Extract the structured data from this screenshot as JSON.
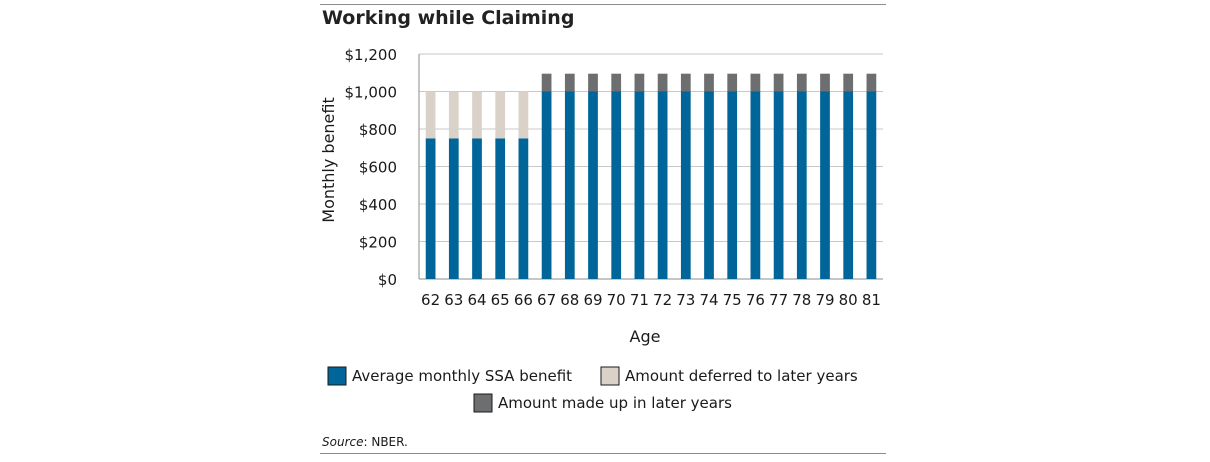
{
  "title": "Working while Claiming",
  "source": {
    "label": "Source",
    "text": ": NBER."
  },
  "chart_data": {
    "type": "bar",
    "stacked": true,
    "categories": [
      "62",
      "63",
      "64",
      "65",
      "66",
      "67",
      "68",
      "69",
      "70",
      "71",
      "72",
      "73",
      "74",
      "75",
      "76",
      "77",
      "78",
      "79",
      "80",
      "81"
    ],
    "series": [
      {
        "name": "Average monthly SSA benefit",
        "color": "#006699",
        "values": [
          750,
          750,
          750,
          750,
          750,
          1000,
          1000,
          1000,
          1000,
          1000,
          1000,
          1000,
          1000,
          1000,
          1000,
          1000,
          1000,
          1000,
          1000,
          1000
        ]
      },
      {
        "name": "Amount deferred to later years",
        "color": "#dad2c8",
        "values": [
          250,
          250,
          250,
          250,
          250,
          0,
          0,
          0,
          0,
          0,
          0,
          0,
          0,
          0,
          0,
          0,
          0,
          0,
          0,
          0
        ]
      },
      {
        "name": "Amount made up in later years",
        "color": "#6d6e70",
        "values": [
          0,
          0,
          0,
          0,
          0,
          95,
          95,
          95,
          95,
          95,
          95,
          95,
          95,
          95,
          95,
          95,
          95,
          95,
          95,
          95
        ]
      }
    ],
    "xlabel": "Age",
    "ylabel": "Monthly benefit",
    "ylim": [
      0,
      1200
    ],
    "yticks": [
      0,
      200,
      400,
      600,
      800,
      1000,
      1200
    ],
    "ytick_labels": [
      "$0",
      "$200",
      "$400",
      "$600",
      "$800",
      "$1,000",
      "$1,200"
    ],
    "grid": true,
    "legend_position": "bottom"
  }
}
